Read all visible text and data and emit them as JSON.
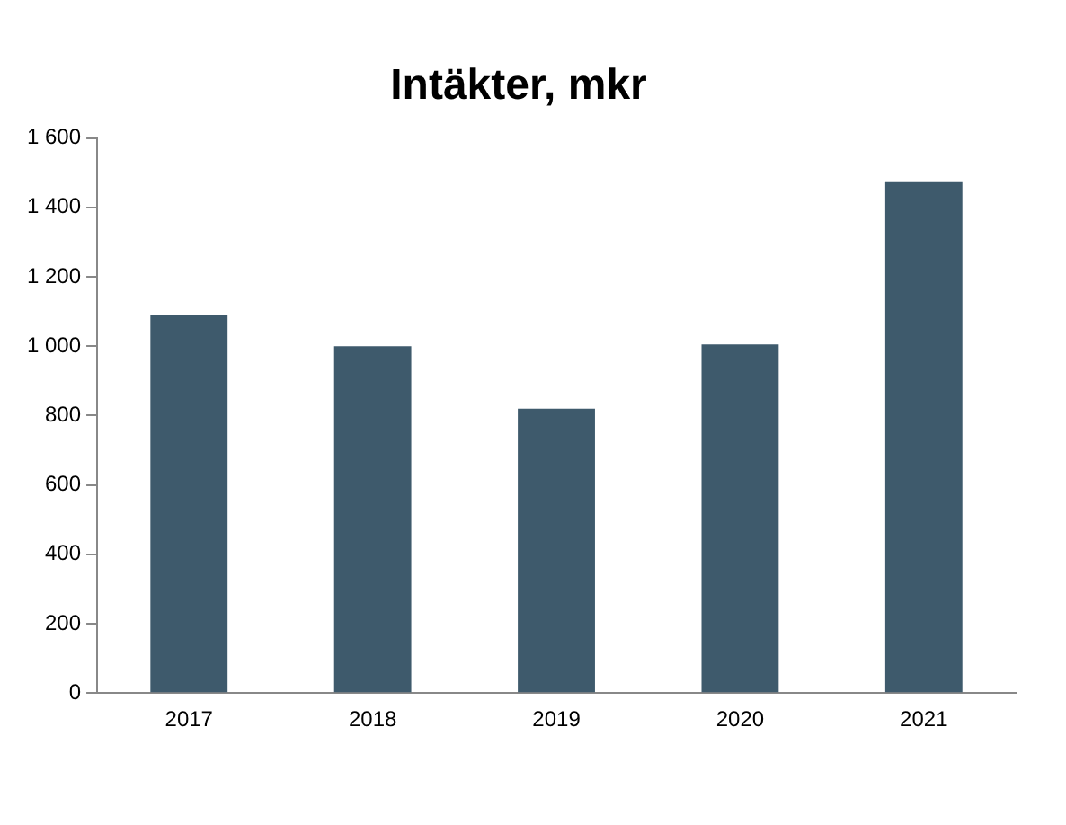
{
  "chart_data": {
    "type": "bar",
    "title": "Intäkter, mkr",
    "categories": [
      "2017",
      "2018",
      "2019",
      "2020",
      "2021"
    ],
    "values": [
      1090,
      1000,
      820,
      1005,
      1475
    ],
    "color": "#3e5a6c",
    "ylim": [
      0,
      1600
    ],
    "yticks": [
      0,
      200,
      400,
      600,
      800,
      1000,
      1200,
      1400,
      1600
    ],
    "grid": false,
    "legend": false
  }
}
